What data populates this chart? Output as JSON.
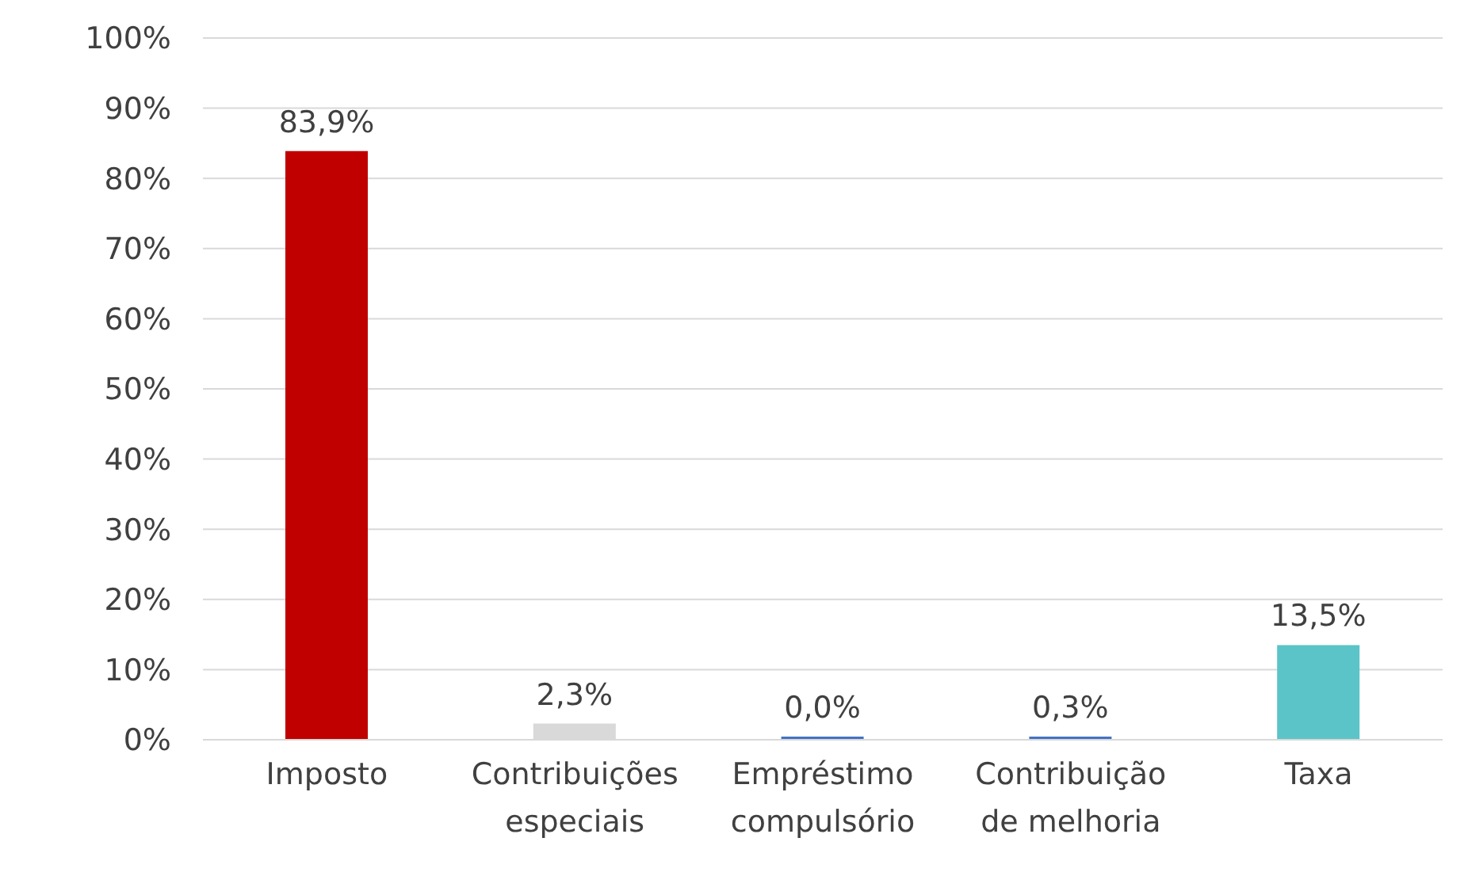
{
  "chart_data": {
    "type": "bar",
    "categories": [
      "Imposto",
      "Contribuições especiais",
      "Empréstimo compulsório",
      "Contribuição de melhoria",
      "Taxa"
    ],
    "values": [
      83.9,
      2.3,
      0.0,
      0.3,
      13.5
    ],
    "colors": [
      "#c00000",
      "#d9d9d9",
      "#4472c4",
      "#4472c4",
      "#5bc4c8"
    ],
    "value_labels": [
      "83,9%",
      "2,3%",
      "0,0%",
      "0,3%",
      "13,5%"
    ],
    "ylim": [
      0,
      100
    ],
    "yticks": [
      {
        "value": 0,
        "label": "0%"
      },
      {
        "value": 10,
        "label": "10%"
      },
      {
        "value": 20,
        "label": "20%"
      },
      {
        "value": 30,
        "label": "30%"
      },
      {
        "value": 40,
        "label": "40%"
      },
      {
        "value": 50,
        "label": "50%"
      },
      {
        "value": 60,
        "label": "60%"
      },
      {
        "value": 70,
        "label": "70%"
      },
      {
        "value": 80,
        "label": "80%"
      },
      {
        "value": 90,
        "label": "90%"
      },
      {
        "value": 100,
        "label": "100%"
      }
    ],
    "grid": "y",
    "legend": false
  }
}
